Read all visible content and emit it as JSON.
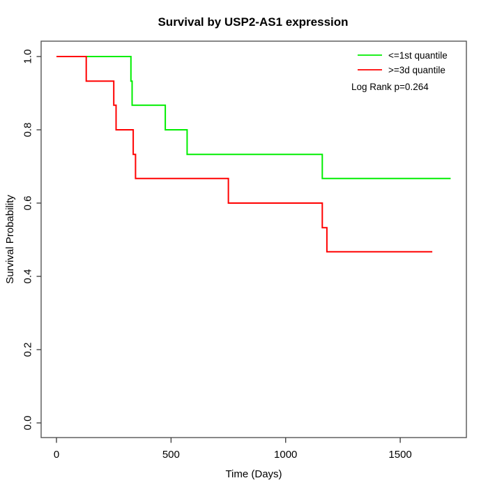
{
  "chart_data": {
    "type": "line",
    "subtype": "kaplan-meier-step",
    "title": "Survival by USP2-AS1 expression",
    "xlabel": "Time (Days)",
    "ylabel": "Survival Probability",
    "annotation": "Log Rank p=0.264",
    "xlim": [
      0,
      1800
    ],
    "ylim": [
      0.0,
      1.0
    ],
    "x_ticks": [
      0,
      500,
      1000,
      1500
    ],
    "x_tick_labels": [
      "0",
      "500",
      "1000",
      "1500"
    ],
    "y_ticks": [
      0.0,
      0.2,
      0.4,
      0.6,
      0.8,
      1.0
    ],
    "y_tick_labels": [
      "0.0",
      "0.2",
      "0.4",
      "0.6",
      "0.8",
      "1.0"
    ],
    "grid": false,
    "legend_position": "top-right",
    "series": [
      {
        "name": "<=1st quantile",
        "color": "#00ee00",
        "steps": [
          [
            0,
            1.0
          ],
          [
            325,
            0.933
          ],
          [
            330,
            0.867
          ],
          [
            475,
            0.8
          ],
          [
            570,
            0.733
          ],
          [
            1160,
            0.667
          ]
        ],
        "end_time": 1720
      },
      {
        "name": ">=3d quantile",
        "color": "#ff0000",
        "steps": [
          [
            0,
            1.0
          ],
          [
            130,
            0.933
          ],
          [
            250,
            0.867
          ],
          [
            260,
            0.8
          ],
          [
            335,
            0.733
          ],
          [
            345,
            0.667
          ],
          [
            750,
            0.6
          ],
          [
            1160,
            0.533
          ],
          [
            1180,
            0.467
          ]
        ],
        "end_time": 1640
      }
    ]
  }
}
